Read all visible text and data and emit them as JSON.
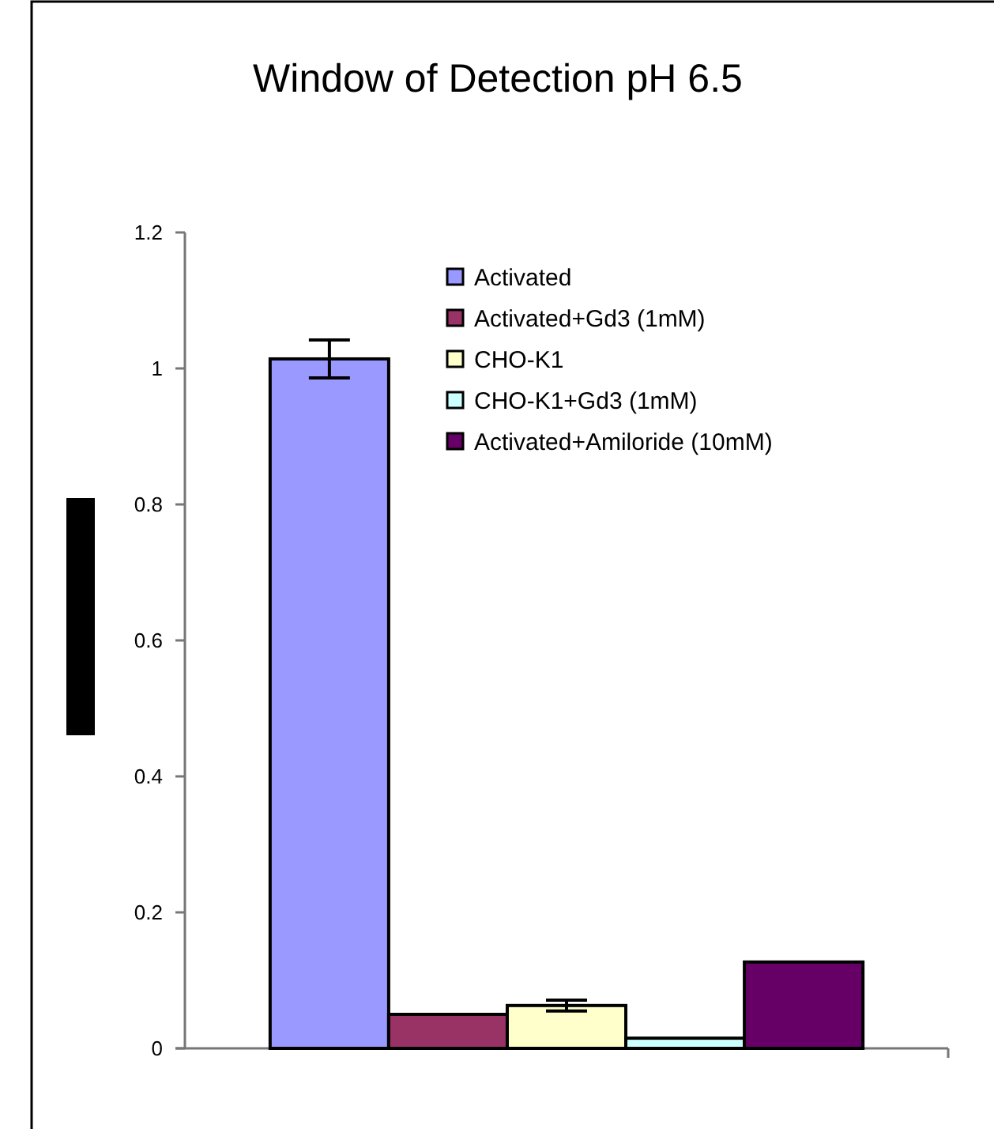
{
  "chart_data": {
    "type": "bar",
    "title": "Window of Detection pH 6.5",
    "categories": [
      null
    ],
    "series": [
      {
        "name": "Activated",
        "color": "#9999ff",
        "values": [
          1.014
        ],
        "errors": [
          0.028
        ]
      },
      {
        "name": "Activated+Gd3 (1mM)",
        "color": "#993366",
        "values": [
          0.05
        ]
      },
      {
        "name": "CHO-K1",
        "color": "#ffffcc",
        "values": [
          0.063
        ],
        "errors": [
          0.008
        ]
      },
      {
        "name": "CHO-K1+Gd3 (1mM)",
        "color": "#ccffff",
        "values": [
          0.015
        ]
      },
      {
        "name": "Activated+Amiloride (10mM)",
        "color": "#660066",
        "values": [
          0.127
        ]
      }
    ],
    "ylim": [
      0,
      1.2
    ],
    "yticks": [
      0,
      0.2,
      0.4,
      0.6,
      0.8,
      1,
      1.2
    ],
    "grid": false,
    "legend": "top right"
  }
}
